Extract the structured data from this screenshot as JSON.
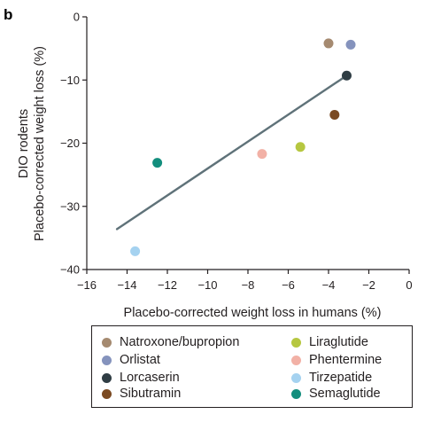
{
  "panel_label": "b",
  "chart_data": {
    "type": "scatter",
    "xlabel": "Placebo-corrected weight loss in humans (%)",
    "ylabel": [
      "DIO rodents",
      "Placebo-corrected weight loss (%)"
    ],
    "xlim": [
      -16,
      0
    ],
    "ylim": [
      -40,
      0
    ],
    "xticks": [
      -16,
      -14,
      -12,
      -10,
      -8,
      -6,
      -4,
      -2,
      0
    ],
    "yticks": [
      0,
      -10,
      -20,
      -30,
      -40
    ],
    "xtick_labels": [
      "−16",
      "−14",
      "−12",
      "−10",
      "−8",
      "−6",
      "−4",
      "−2",
      "0"
    ],
    "ytick_labels": [
      "0",
      "−10",
      "−20",
      "−30",
      "−40"
    ],
    "grid": false,
    "legend_position": "bottom",
    "series": [
      {
        "name": "Natroxone/bupropion",
        "color": "#a58a70",
        "x": -4.0,
        "y": -4.2
      },
      {
        "name": "Orlistat",
        "color": "#8593bd",
        "x": -2.9,
        "y": -4.4
      },
      {
        "name": "Lorcaserin",
        "color": "#2f3d44",
        "x": -3.1,
        "y": -9.3
      },
      {
        "name": "Sibutramin",
        "color": "#7b4a22",
        "x": -3.7,
        "y": -15.5
      },
      {
        "name": "Liraglutide",
        "color": "#b6c740",
        "x": -5.4,
        "y": -20.6
      },
      {
        "name": "Phentermine",
        "color": "#f2b1a6",
        "x": -7.3,
        "y": -21.7
      },
      {
        "name": "Tirzepatide",
        "color": "#a5d2f0",
        "x": -13.6,
        "y": -37.1
      },
      {
        "name": "Semaglutide",
        "color": "#138e7d",
        "x": -12.5,
        "y": -23.1
      }
    ],
    "trendline": {
      "color": "#5f7279",
      "x": [
        -14.5,
        -3.1
      ],
      "y": [
        -33.6,
        -9.3
      ]
    }
  }
}
